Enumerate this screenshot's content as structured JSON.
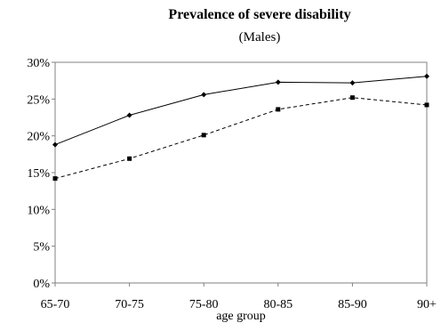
{
  "chart_data": {
    "type": "line",
    "title": "Prevalence of severe disability",
    "subtitle": "(Males)",
    "xlabel": "age group",
    "ylabel": "",
    "categories": [
      "65-70",
      "70-75",
      "75-80",
      "80-85",
      "85-90",
      "90+"
    ],
    "y_ticks": [
      "0%",
      "5%",
      "10%",
      "15%",
      "20%",
      "25%",
      "30%"
    ],
    "ylim": [
      0,
      30
    ],
    "grid": false,
    "legend": "none",
    "series": [
      {
        "style": "solid",
        "marker": "diamond",
        "color": "#000000",
        "values": [
          18.8,
          22.8,
          25.6,
          27.3,
          27.2,
          28.1
        ]
      },
      {
        "style": "dashed",
        "marker": "square",
        "color": "#000000",
        "values": [
          14.2,
          16.9,
          20.1,
          23.6,
          25.2,
          24.2
        ]
      }
    ]
  }
}
